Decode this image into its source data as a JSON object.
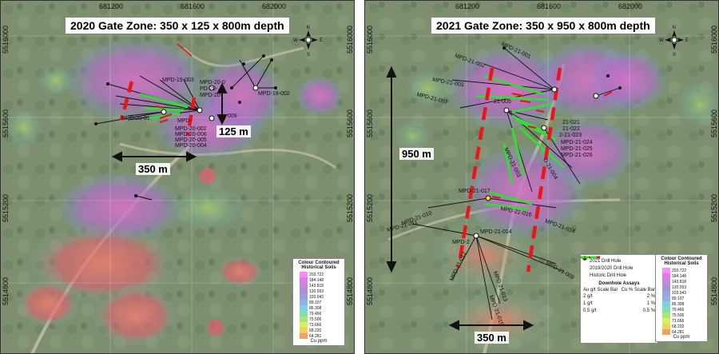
{
  "left": {
    "title": "2020 Gate Zone: 350 x 125 x 800m depth",
    "x_ticks": [
      "681200",
      "681600",
      "682000"
    ],
    "y_ticks": [
      "5516000",
      "5515600",
      "5515200",
      "5514800"
    ],
    "width_label": "350 m",
    "depth_label": "125 m",
    "hole_labels": [
      "MPD-19-003",
      "MPD-20-0",
      "PD-20-",
      "MPD-20-",
      "MPD-19-002",
      "MPD-20-01",
      "MPD-",
      "009",
      "MPD-20-002",
      "MPD-20-006",
      "MPD-20-005",
      "MPD-20-004"
    ],
    "colorbar": {
      "title_1": "Colour Contoured",
      "title_2": "Historical Soils",
      "values": [
        "203.722",
        "184.148",
        "143.818",
        "120.553",
        "103.043",
        "89.107",
        "86.308",
        "79.466",
        "75.506",
        "73.666",
        "68.220",
        "64.281"
      ],
      "unit": "Cu ppm"
    }
  },
  "right": {
    "title": "2021 Gate Zone: 350 x 950 x 800m depth",
    "x_ticks": [
      "681200",
      "681600",
      "682000"
    ],
    "y_ticks": [
      "5516000",
      "5515600",
      "5515200",
      "5514800"
    ],
    "width_label": "350 m",
    "height_label": "950 m",
    "hole_labels": [
      "MPD-21-002",
      "MPD-21-001",
      "MPD-21-003",
      "MPD-21-007",
      "21-005",
      "21-021",
      "21-022",
      "2-21-023",
      "MPD-21-024",
      "MPD-21-025",
      "MPD-21-026",
      "MPD-21-003",
      "D-21-004",
      "MPD-21-017",
      "MPD-21-016",
      "MPD-21-010",
      "MPD-21-011",
      "MPD-21-014",
      "MPD-21-018",
      "MPD-2",
      "MPD-21-012",
      "MPD-21-013",
      "MPD-21-015",
      "MPD-21-009"
    ],
    "legend": {
      "items": [
        "2021 Drill Hole",
        "2019/2020 Drill Hole",
        "Historic Drill Hole"
      ],
      "assays_title": "Downhole Assays",
      "au_title": "Au g/t Scale Bar",
      "cu_title": "Cu % Scale Bar",
      "au_values": [
        "2 g/t",
        "1 g/t",
        "0.5 g/t"
      ],
      "cu_values": [
        "2 %",
        "1 %",
        "0.5 %"
      ]
    },
    "colorbar": {
      "title_1": "Colour Contoured",
      "title_2": "Historical Soils",
      "values": [
        "203.722",
        "184.148",
        "143.818",
        "120.553",
        "103.043",
        "89.107",
        "86.308",
        "79.466",
        "75.506",
        "73.666",
        "68.220",
        "64.281"
      ],
      "unit": "Cu ppm"
    }
  },
  "colors": {
    "trench_red": "#e8161a",
    "au_red": "#e0161b",
    "cu_green": "#3ad83a",
    "drill_2021": "#f2e418",
    "anomaly_magenta": "#d873c8",
    "anomaly_purple": "#9a6fc0"
  },
  "colorbar_colors": [
    "#ff88ff",
    "#e07ae8",
    "#c38ad6",
    "#a990d8",
    "#9aa0e0",
    "#8fb0e8",
    "#7fd0e0",
    "#7fe0b0",
    "#a8e870",
    "#d8f060",
    "#f0d060",
    "#f0a060"
  ]
}
